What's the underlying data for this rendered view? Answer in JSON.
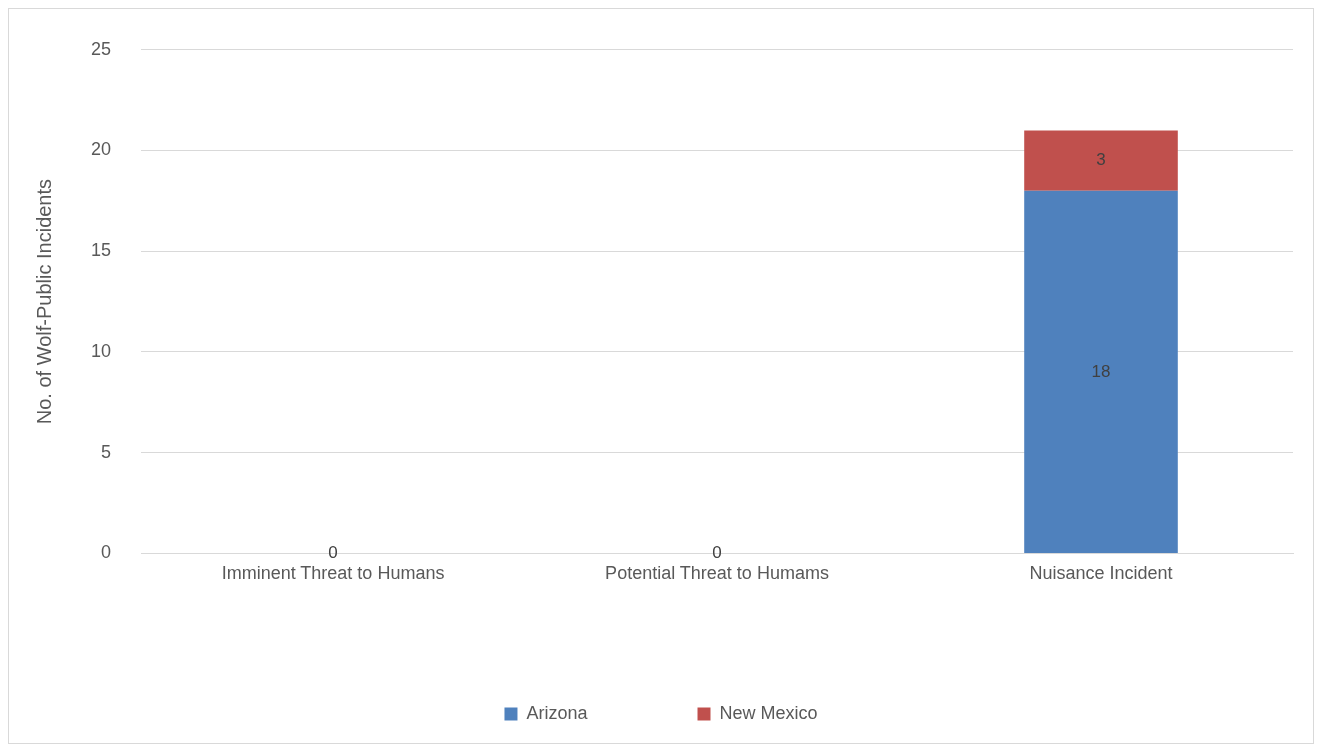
{
  "chart_data": {
    "type": "bar",
    "ylabel": "No. of Wolf-Public Incidents",
    "categories": [
      "Imminent Threat to Humans",
      "Potential Threat to Humams",
      "Nuisance Incident"
    ],
    "series": [
      {
        "name": "Arizona",
        "color": "#4f81bd",
        "values": [
          0,
          0,
          18
        ],
        "value_labels": [
          "0",
          "0",
          "18"
        ]
      },
      {
        "name": "New Mexico",
        "color": "#c0504d",
        "values": [
          0,
          0,
          3
        ],
        "value_labels": [
          null,
          null,
          "3"
        ]
      }
    ],
    "stacked": true,
    "ylim": [
      0,
      25
    ],
    "yticks": [
      0,
      5,
      10,
      15,
      20,
      25
    ],
    "grid": "y",
    "legend": "bottom"
  }
}
